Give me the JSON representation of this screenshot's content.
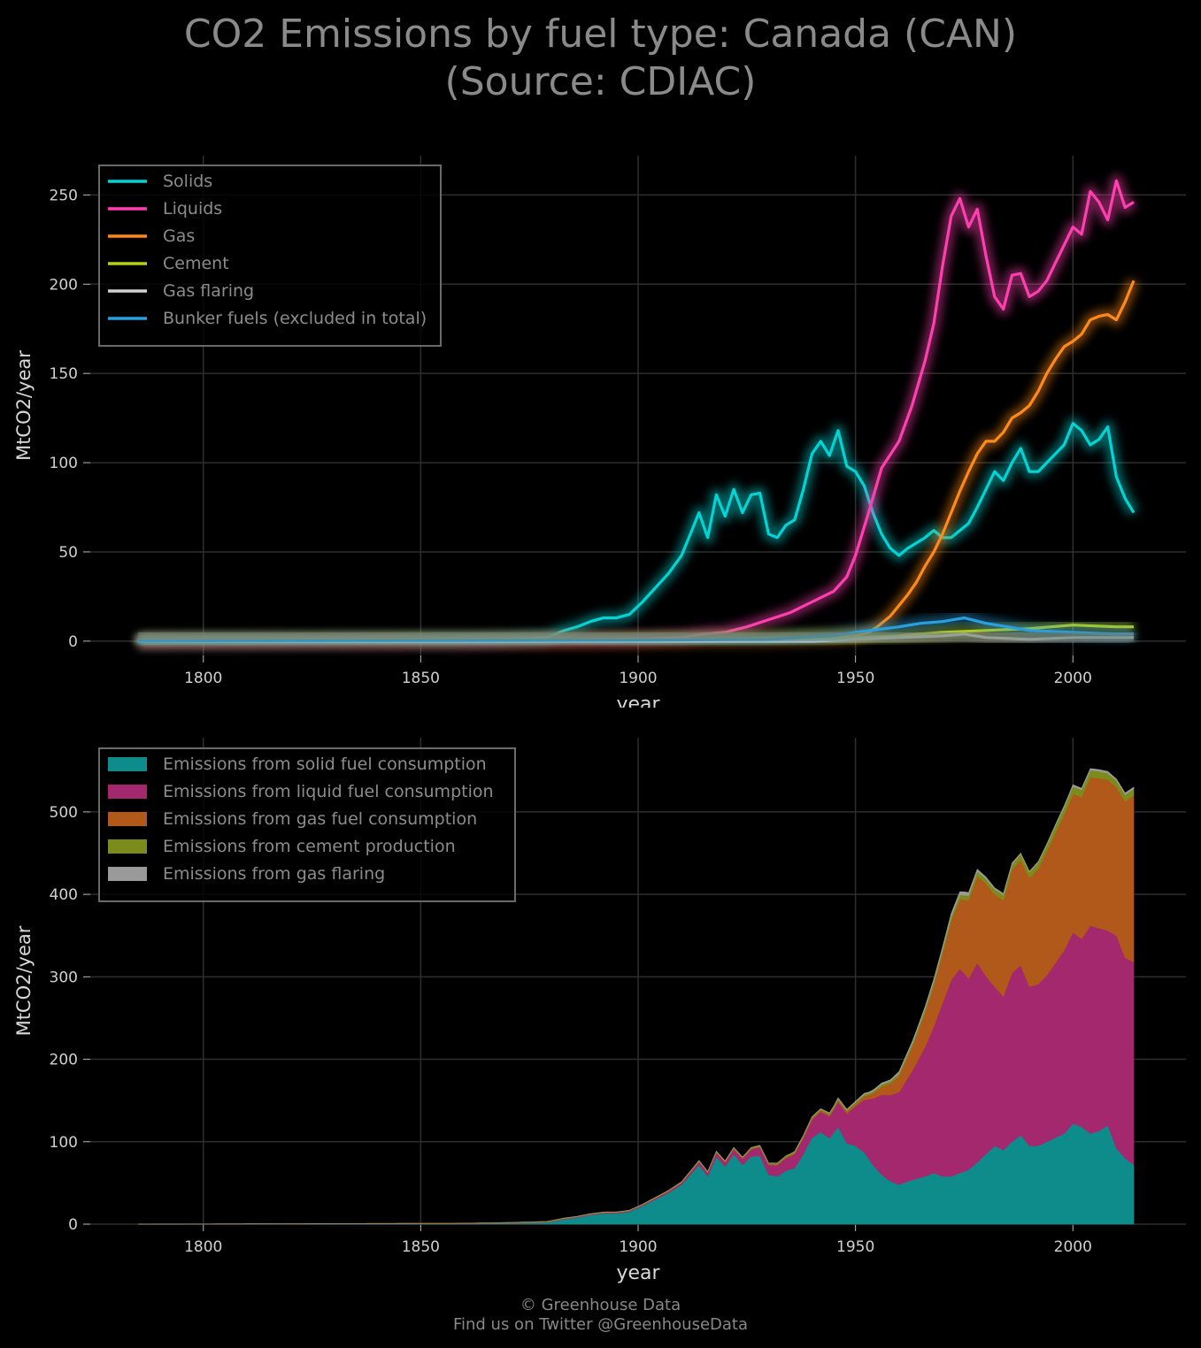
{
  "title_line1": "CO2 Emissions by fuel type: Canada (CAN)",
  "title_line2": "(Source: CDIAC)",
  "footer_line1": "© Greenhouse Data",
  "footer_line2": "Find us on Twitter @GreenhouseData",
  "chart_data": [
    {
      "type": "line",
      "xlabel": "year",
      "ylabel": "MtCO2/year",
      "xlim": [
        1774,
        2026
      ],
      "ylim": [
        -8,
        272
      ],
      "xticks": [
        1800,
        1850,
        1900,
        1950,
        2000
      ],
      "yticks": [
        0,
        50,
        100,
        150,
        200,
        250
      ],
      "grid": true,
      "legend_position": "top-left",
      "series": [
        {
          "name": "Solids",
          "color": "#00d4d4",
          "x": [
            1785,
            1860,
            1870,
            1879,
            1883,
            1886,
            1889,
            1892,
            1895,
            1898,
            1901,
            1904,
            1907,
            1910,
            1912,
            1914,
            1916,
            1918,
            1920,
            1922,
            1924,
            1926,
            1928,
            1930,
            1932,
            1934,
            1936,
            1938,
            1940,
            1942,
            1944,
            1946,
            1948,
            1950,
            1952,
            1954,
            1956,
            1958,
            1960,
            1962,
            1964,
            1966,
            1968,
            1970,
            1972,
            1974,
            1976,
            1978,
            1980,
            1982,
            1984,
            1986,
            1988,
            1990,
            1992,
            1994,
            1996,
            1998,
            2000,
            2002,
            2004,
            2006,
            2008,
            2010,
            2012,
            2014
          ],
          "y": [
            0,
            0.5,
            1,
            2,
            6,
            8,
            11,
            13,
            13,
            15,
            22,
            30,
            38,
            48,
            60,
            72,
            58,
            82,
            70,
            85,
            72,
            82,
            83,
            60,
            58,
            65,
            68,
            85,
            105,
            112,
            104,
            118,
            98,
            95,
            87,
            72,
            60,
            52,
            48,
            52,
            55,
            58,
            62,
            58,
            58,
            62,
            66,
            75,
            85,
            95,
            90,
            100,
            108,
            95,
            95,
            100,
            105,
            110,
            122,
            118,
            110,
            113,
            120,
            92,
            80,
            72
          ]
        },
        {
          "name": "Liquids",
          "color": "#ff3fb0",
          "x": [
            1785,
            1860,
            1900,
            1910,
            1915,
            1920,
            1925,
            1930,
            1935,
            1940,
            1945,
            1948,
            1950,
            1953,
            1956,
            1960,
            1963,
            1966,
            1968,
            1970,
            1972,
            1974,
            1976,
            1978,
            1980,
            1982,
            1984,
            1986,
            1988,
            1990,
            1992,
            1994,
            1996,
            1998,
            2000,
            2002,
            2004,
            2006,
            2008,
            2010,
            2012,
            2014
          ],
          "y": [
            0,
            0,
            1,
            2,
            4,
            5,
            8,
            12,
            16,
            22,
            28,
            36,
            48,
            72,
            97,
            112,
            132,
            157,
            178,
            210,
            238,
            248,
            232,
            242,
            216,
            193,
            186,
            205,
            206,
            193,
            196,
            202,
            212,
            222,
            232,
            228,
            252,
            246,
            236,
            258,
            243,
            246
          ]
        },
        {
          "name": "Gas",
          "color": "#ff8a1a",
          "x": [
            1785,
            1900,
            1930,
            1945,
            1950,
            1953,
            1955,
            1958,
            1960,
            1962,
            1964,
            1966,
            1968,
            1970,
            1972,
            1974,
            1976,
            1978,
            1980,
            1982,
            1984,
            1986,
            1988,
            1990,
            1992,
            1994,
            1996,
            1998,
            2000,
            2002,
            2004,
            2006,
            2008,
            2010,
            2012,
            2014
          ],
          "y": [
            0,
            0.5,
            1,
            2,
            3,
            5,
            8,
            14,
            20,
            26,
            33,
            42,
            50,
            60,
            72,
            84,
            95,
            105,
            112,
            112,
            117,
            125,
            128,
            132,
            140,
            150,
            158,
            165,
            168,
            172,
            180,
            182,
            183,
            180,
            190,
            202
          ]
        },
        {
          "name": "Cement",
          "color": "#b5cf1a",
          "x": [
            1785,
            1900,
            1920,
            1950,
            1960,
            1970,
            1980,
            1990,
            2000,
            2010,
            2014
          ],
          "y": [
            0,
            0.5,
            1,
            2,
            3,
            5,
            6,
            7,
            9,
            8,
            8
          ]
        },
        {
          "name": "Gas flaring",
          "color": "#d0d0d0",
          "x": [
            1785,
            1940,
            1950,
            1960,
            1970,
            1975,
            1980,
            1990,
            2000,
            2010,
            2014
          ],
          "y": [
            0,
            0,
            1,
            2,
            3,
            4,
            2,
            1,
            2,
            2,
            2
          ]
        },
        {
          "name": "Bunker fuels (excluded in total)",
          "color": "#2a9fe0",
          "x": [
            1785,
            1900,
            1930,
            1945,
            1950,
            1960,
            1965,
            1970,
            1975,
            1980,
            1985,
            1990,
            2000,
            2010,
            2014
          ],
          "y": [
            0,
            0.5,
            1,
            3,
            5,
            8,
            10,
            11,
            13,
            10,
            8,
            6,
            5,
            4,
            4
          ]
        }
      ]
    },
    {
      "type": "area",
      "stacked": true,
      "xlabel": "year",
      "ylabel": "MtCO2/year",
      "xlim": [
        1774,
        2026
      ],
      "ylim": [
        0,
        590
      ],
      "xticks": [
        1800,
        1850,
        1900,
        1950,
        2000
      ],
      "yticks": [
        0,
        100,
        200,
        300,
        400,
        500
      ],
      "grid": true,
      "legend_position": "top-left",
      "series": [
        {
          "name": "Emissions from solid fuel consumption",
          "color": "#0e8c8c"
        },
        {
          "name": "Emissions from liquid fuel consumption",
          "color": "#a3286e"
        },
        {
          "name": "Emissions from gas fuel consumption",
          "color": "#b0591a"
        },
        {
          "name": "Emissions from cement production",
          "color": "#7c8c1c"
        },
        {
          "name": "Emissions from gas flaring",
          "color": "#9a9a9a"
        }
      ]
    }
  ]
}
